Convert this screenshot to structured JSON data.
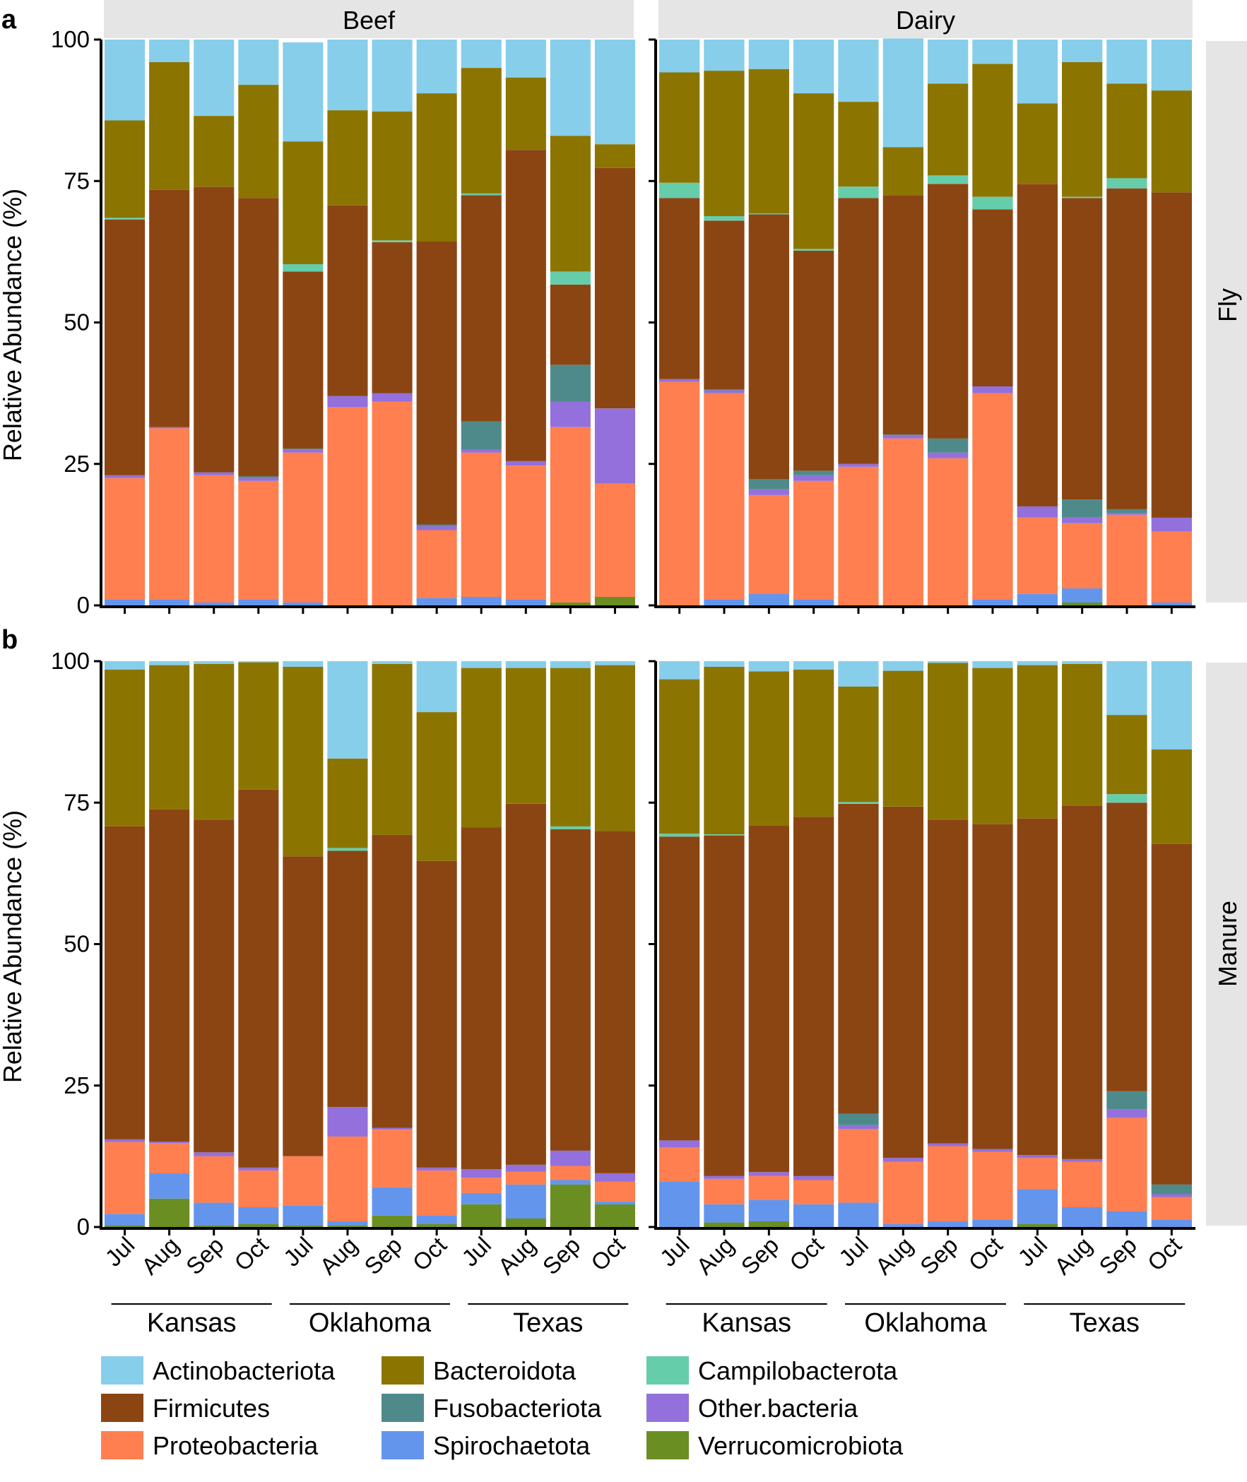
{
  "figure": {
    "panel_letters": [
      "a",
      "b"
    ],
    "facet_columns": [
      "Beef",
      "Dairy"
    ],
    "facet_rows": [
      "Fly",
      "Manure"
    ],
    "ylabel": "Relative Abundance (%)",
    "yticks": [
      "0",
      "25",
      "50",
      "75",
      "100"
    ],
    "months": [
      "Jul",
      "Aug",
      "Sep",
      "Oct"
    ],
    "states": [
      "Kansas",
      "Oklahoma",
      "Texas"
    ]
  },
  "colors": {
    "Actinobacteriota": "#87CEEB",
    "Bacteroidota": "#8B7500",
    "Campilobacterota": "#66CDAA",
    "Firmicutes": "#8B4513",
    "Fusobacteriota": "#4F8A8B",
    "Other.bacteria": "#9370DB",
    "Proteobacteria": "#FF7F50",
    "Spirochaetota": "#6495ED",
    "Verrucomicrobiota": "#6B8E23"
  },
  "legend": {
    "rows": [
      [
        "Actinobacteriota",
        "Bacteroidota",
        "Campilobacterota"
      ],
      [
        "Firmicutes",
        "Fusobacteriota",
        "Other.bacteria"
      ],
      [
        "Proteobacteria",
        "Spirochaetota",
        "Verrucomicrobiota"
      ]
    ]
  },
  "chart_data": {
    "type": "bar",
    "stacked": true,
    "ylim": [
      0,
      100
    ],
    "ylabel": "Relative Abundance (%)",
    "categories": [
      "Kansas Jul",
      "Kansas Aug",
      "Kansas Sep",
      "Kansas Oct",
      "Oklahoma Jul",
      "Oklahoma Aug",
      "Oklahoma Sep",
      "Oklahoma Oct",
      "Texas Jul",
      "Texas Aug",
      "Texas Sep",
      "Texas Oct"
    ],
    "stack_order": [
      "Verrucomicrobiota",
      "Spirochaetota",
      "Proteobacteria",
      "Other.bacteria",
      "Fusobacteriota",
      "Firmicutes",
      "Campilobacterota",
      "Bacteroidota",
      "Actinobacteriota"
    ],
    "panels": [
      {
        "row": "Fly",
        "column": "Beef",
        "series": [
          {
            "name": "Verrucomicrobiota",
            "values": [
              0,
              0,
              0,
              0,
              0,
              0,
              0,
              0,
              0,
              0,
              0.5,
              1.5
            ]
          },
          {
            "name": "Spirochaetota",
            "values": [
              1,
              1,
              0.5,
              1,
              0.5,
              0,
              0,
              1.3,
              1.5,
              1,
              0,
              0
            ]
          },
          {
            "name": "Proteobacteria",
            "values": [
              21.5,
              30.3,
              22.5,
              21,
              26.5,
              35,
              36,
              12,
              25.5,
              23.7,
              31,
              20
            ]
          },
          {
            "name": "Other.bacteria",
            "values": [
              0.5,
              0.2,
              0.5,
              0.5,
              0.5,
              2,
              1.5,
              0.7,
              0.5,
              0.8,
              4.5,
              13.3
            ]
          },
          {
            "name": "Fusobacteriota",
            "values": [
              0,
              0,
              0,
              0.3,
              0.2,
              0,
              0,
              0.3,
              5,
              0,
              6.5,
              0
            ]
          },
          {
            "name": "Firmicutes",
            "values": [
              45.2,
              42,
              50.5,
              49.2,
              31.3,
              33.7,
              26.7,
              50,
              40,
              55,
              14.2,
              42.5
            ]
          },
          {
            "name": "Campilobacterota",
            "values": [
              0.3,
              0,
              0,
              0,
              1.3,
              0,
              0.3,
              0,
              0.3,
              0,
              2.3,
              0
            ]
          },
          {
            "name": "Bacteroidota",
            "values": [
              17.2,
              22.5,
              12.5,
              20,
              21.7,
              16.8,
              22.8,
              26.2,
              22.2,
              12.8,
              24,
              4.2
            ]
          },
          {
            "name": "Actinobacteriota",
            "values": [
              14.3,
              4,
              13.5,
              8,
              17.5,
              12.5,
              12.7,
              9.5,
              5,
              6.7,
              17,
              18.5
            ]
          }
        ]
      },
      {
        "row": "Fly",
        "column": "Dairy",
        "series": [
          {
            "name": "Verrucomicrobiota",
            "values": [
              0,
              0,
              0,
              0,
              0,
              0,
              0,
              0,
              0,
              0.5,
              0,
              0
            ]
          },
          {
            "name": "Spirochaetota",
            "values": [
              0,
              1,
              2,
              1,
              0,
              0,
              0,
              1,
              2,
              2.5,
              0,
              0.5
            ]
          },
          {
            "name": "Proteobacteria",
            "values": [
              39.5,
              36.5,
              17.5,
              21,
              24.5,
              29.5,
              26,
              36.5,
              13.5,
              11.5,
              16,
              12.5
            ]
          },
          {
            "name": "Other.bacteria",
            "values": [
              0.5,
              0.5,
              1,
              1,
              0.5,
              0.5,
              1,
              1.2,
              2,
              1,
              0.3,
              2.5
            ]
          },
          {
            "name": "Fusobacteriota",
            "values": [
              0,
              0.2,
              1.8,
              0.8,
              0,
              0.2,
              2.5,
              0,
              0,
              3.2,
              0.7,
              0
            ]
          },
          {
            "name": "Firmicutes",
            "values": [
              32,
              29.8,
              46.8,
              38.9,
              47,
              42.3,
              45,
              31.3,
              57,
              53.3,
              56.7,
              57.5
            ]
          },
          {
            "name": "Campilobacterota",
            "values": [
              2.7,
              0.8,
              0.2,
              0.3,
              2,
              0,
              1.5,
              2.2,
              0,
              0.2,
              1.8,
              0
            ]
          },
          {
            "name": "Bacteroidota",
            "values": [
              19.5,
              25.7,
              25.5,
              27.5,
              15,
              8.5,
              16.2,
              23.5,
              14.2,
              23.8,
              16.7,
              18
            ]
          },
          {
            "name": "Actinobacteriota",
            "values": [
              5.8,
              5.5,
              5.2,
              9.5,
              11,
              19.2,
              7.8,
              4.3,
              11.3,
              4,
              7.8,
              9
            ]
          }
        ]
      },
      {
        "row": "Manure",
        "column": "Beef",
        "series": [
          {
            "name": "Verrucomicrobiota",
            "values": [
              0.3,
              5,
              0.3,
              0.5,
              0.3,
              0.3,
              2,
              0.5,
              4,
              1.5,
              7.5,
              4
            ]
          },
          {
            "name": "Spirochaetota",
            "values": [
              2,
              4.5,
              4,
              3,
              3.5,
              0.7,
              5,
              1.5,
              2,
              6,
              0.8,
              0.5
            ]
          },
          {
            "name": "Proteobacteria",
            "values": [
              12.7,
              5.3,
              8.2,
              6.5,
              8.7,
              15,
              10.2,
              8,
              2.7,
              2.3,
              2.5,
              3.5
            ]
          },
          {
            "name": "Other.bacteria",
            "values": [
              0.5,
              0.3,
              0.7,
              0.5,
              0,
              5.2,
              0.3,
              0.5,
              1.5,
              1.2,
              2.7,
              1.5
            ]
          },
          {
            "name": "Fusobacteriota",
            "values": [
              0,
              0,
              0,
              0,
              0,
              0,
              0,
              0,
              0,
              0,
              0,
              0
            ]
          },
          {
            "name": "Firmicutes",
            "values": [
              55.3,
              58.7,
              58.8,
              66.8,
              53,
              45.3,
              51.8,
              54.2,
              60.4,
              63.8,
              56.8,
              60.5
            ]
          },
          {
            "name": "Campilobacterota",
            "values": [
              0,
              0,
              0,
              0,
              0,
              0.5,
              0,
              0,
              0,
              0,
              0.5,
              0
            ]
          },
          {
            "name": "Bacteroidota",
            "values": [
              27.7,
              25.5,
              27.5,
              22.5,
              33.5,
              15.8,
              30.2,
              26.3,
              28.2,
              24,
              28,
              29.3
            ]
          },
          {
            "name": "Actinobacteriota",
            "values": [
              1.5,
              0.7,
              0.5,
              0.2,
              1,
              17.2,
              0.5,
              9,
              1.2,
              1.2,
              1.2,
              0.7
            ]
          }
        ]
      },
      {
        "row": "Manure",
        "column": "Dairy",
        "series": [
          {
            "name": "Verrucomicrobiota",
            "values": [
              0,
              0.8,
              1,
              0,
              0,
              0,
              0,
              0,
              0.5,
              0,
              0,
              0
            ]
          },
          {
            "name": "Spirochaetota",
            "values": [
              8,
              3.2,
              3.8,
              4,
              4.3,
              0.5,
              1,
              1.3,
              6.2,
              3.5,
              2.8,
              1.3
            ]
          },
          {
            "name": "Proteobacteria",
            "values": [
              6,
              4.5,
              4.2,
              4.3,
              13,
              11,
              13.3,
              12,
              5.5,
              8,
              16.5,
              4
            ]
          },
          {
            "name": "Other.bacteria",
            "values": [
              1.3,
              0.5,
              0.7,
              0.7,
              0.7,
              0.7,
              0.5,
              0.5,
              0.5,
              0.5,
              1.5,
              0.5
            ]
          },
          {
            "name": "Fusobacteriota",
            "values": [
              0,
              0,
              0,
              0,
              2,
              0,
              0,
              0,
              0,
              0,
              3.2,
              1.7
            ]
          },
          {
            "name": "Firmicutes",
            "values": [
              53.7,
              60.2,
              61.3,
              63.5,
              54.8,
              62.1,
              57.2,
              57.4,
              59.5,
              62.5,
              51,
              60.2
            ]
          },
          {
            "name": "Campilobacterota",
            "values": [
              0.5,
              0.2,
              0,
              0,
              0.3,
              0,
              0,
              0,
              0,
              0,
              1.5,
              0
            ]
          },
          {
            "name": "Bacteroidota",
            "values": [
              27.3,
              29.6,
              27.2,
              26,
              20.4,
              24,
              27.7,
              27.6,
              27.1,
              25,
              14,
              16.7
            ]
          },
          {
            "name": "Actinobacteriota",
            "values": [
              3.2,
              1,
              1.8,
              1.5,
              4.5,
              1.7,
              0.3,
              1.2,
              0.7,
              0.5,
              9.5,
              15.6
            ]
          }
        ]
      }
    ]
  }
}
